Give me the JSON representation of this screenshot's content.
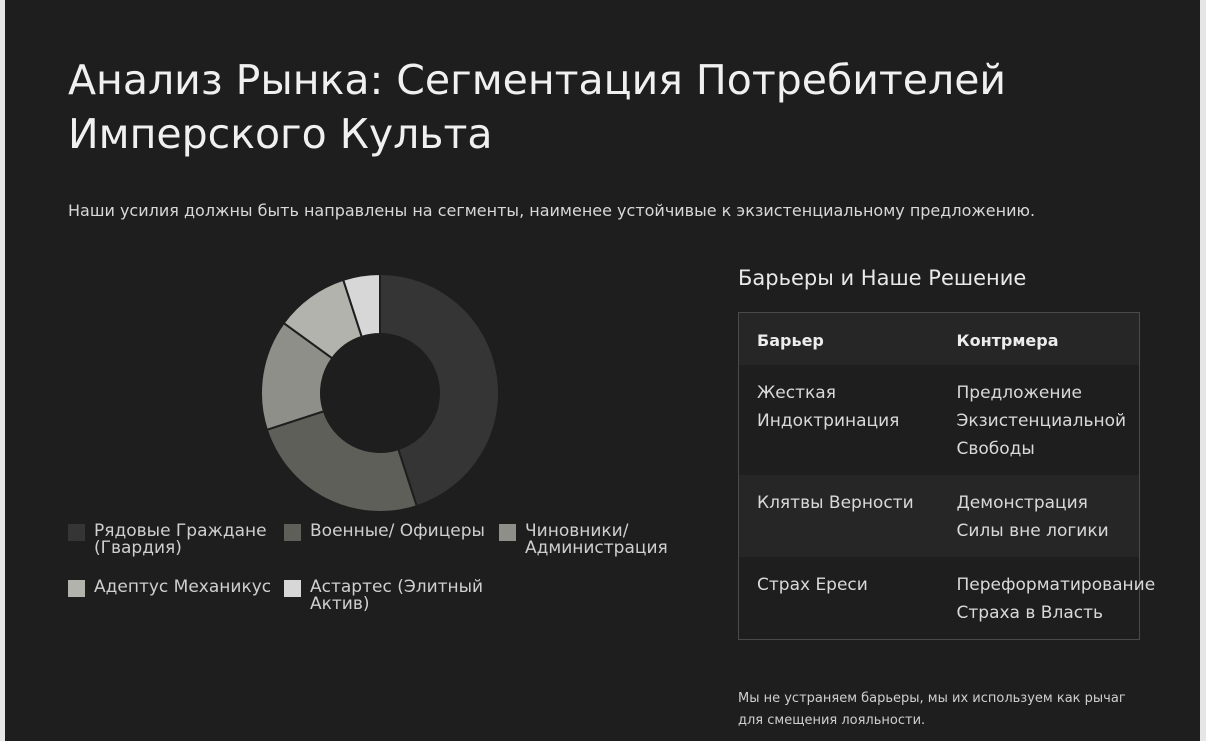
{
  "slide": {
    "title": "Анализ Рынка: Сегментация Потребителей Имперского Культа",
    "subtitle": "Наши усилия должны быть направлены на сегменты, наименее устойчивые к экзистенциальному предложению."
  },
  "chart_data": {
    "type": "pie",
    "donut": true,
    "categories": [
      "Рядовые Граждане (Гвардия)",
      "Военные/ Офицеры",
      "Чиновники/ Администрация",
      "Адептус Механикус",
      "Астартес (Элитный Актив)"
    ],
    "values": [
      45,
      25,
      15,
      10,
      5
    ],
    "colors": [
      "#353535",
      "#5f5f5a",
      "#8f8f89",
      "#b3b3ae",
      "#d7d7d7"
    ],
    "legend": "bottom"
  },
  "panel": {
    "title": "Барьеры и Наше Решение",
    "headers": [
      "Барьер",
      "Контрмера"
    ],
    "rows": [
      [
        "Жесткая Индоктринация",
        "Предложение Экзистенциальной Свободы"
      ],
      [
        "Клятвы Верности",
        "Демонстрация Силы вне логики"
      ],
      [
        "Страх Ереси",
        "Переформатирование Страха в Власть"
      ]
    ],
    "footnote": "Мы не устраняем барьеры, мы их используем как рычаг для смещения лояльности."
  }
}
